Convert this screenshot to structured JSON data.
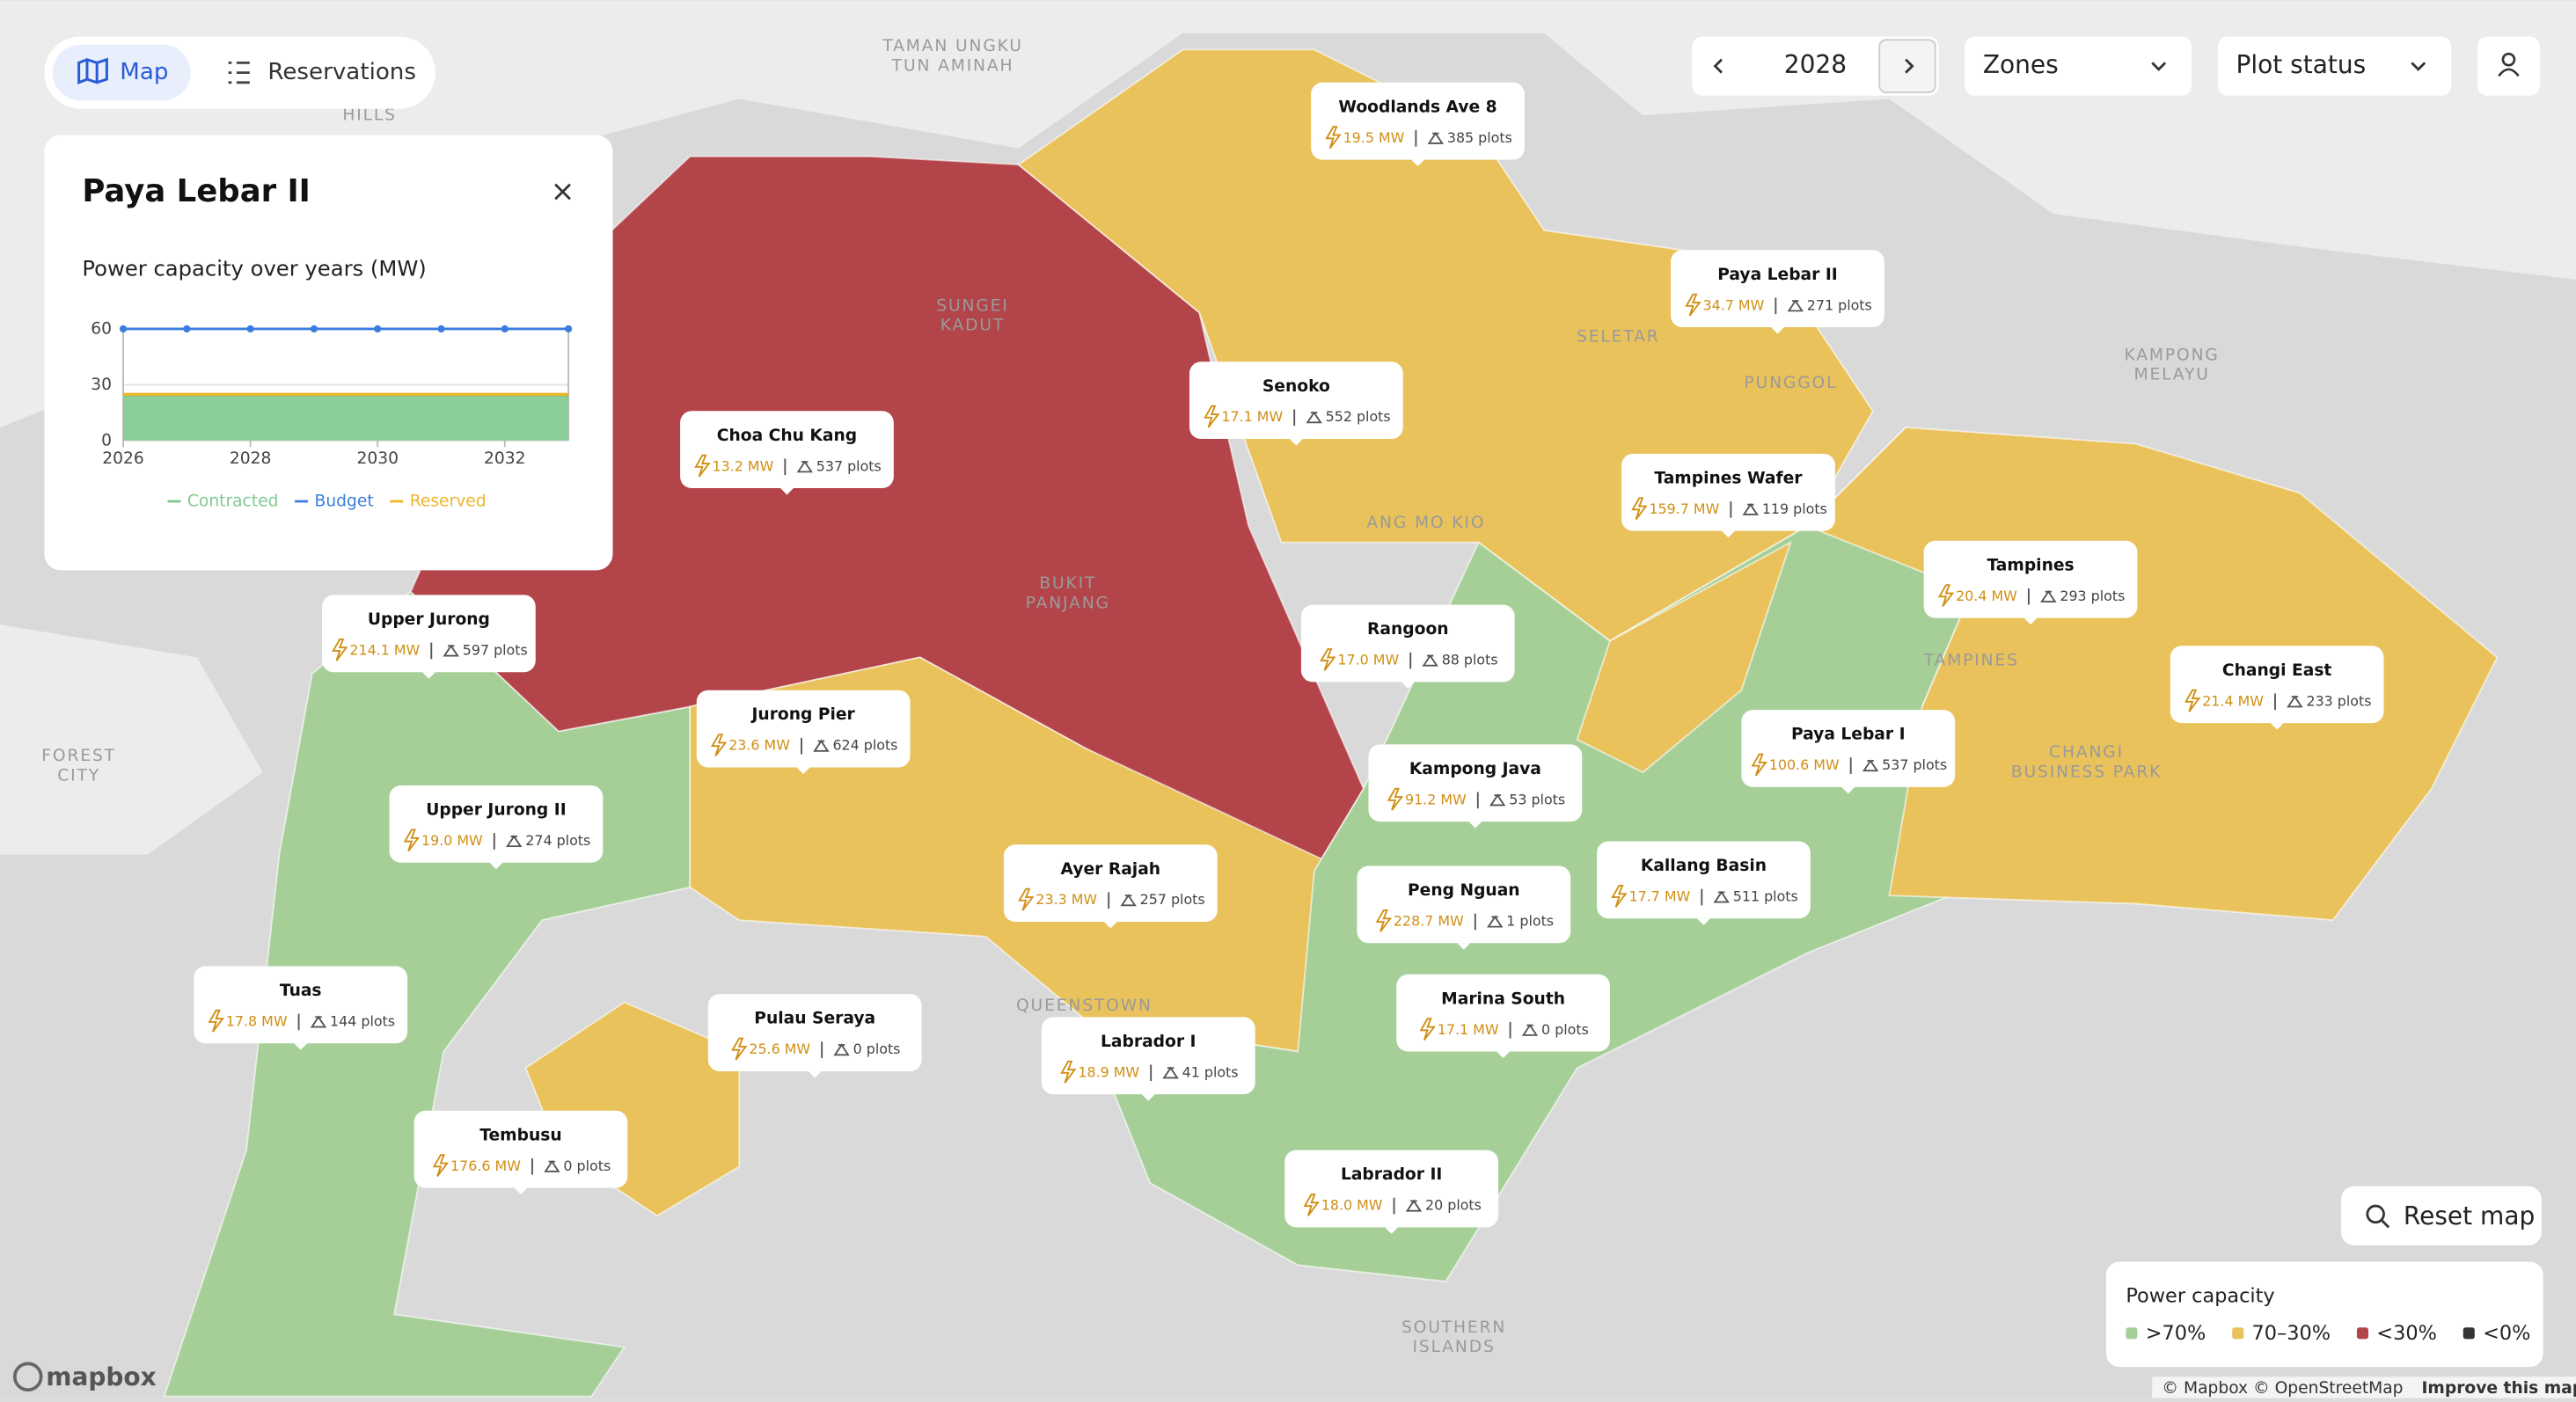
{
  "nav": {
    "tabs": [
      "Map",
      "Reservations"
    ]
  },
  "controls": {
    "year": "2028",
    "zones": "Zones",
    "plot_status": "Plot status",
    "reset": "Reset map"
  },
  "panel": {
    "title": "Paya Lebar II"
  },
  "chart_data": {
    "type": "area",
    "title": "Power capacity over years (MW)",
    "x": [
      2026,
      2027,
      2028,
      2029,
      2030,
      2031,
      2032,
      2033
    ],
    "xlim": [
      2026,
      2033
    ],
    "xticks": [
      2026,
      2028,
      2030,
      2032
    ],
    "ylim": [
      0,
      60
    ],
    "yticks": [
      0,
      30,
      60
    ],
    "stacked": true,
    "series": [
      {
        "name": "Contracted",
        "color": "#7fc98f",
        "kind": "area",
        "values": [
          24,
          24,
          24,
          24,
          24,
          24,
          24,
          24
        ]
      },
      {
        "name": "Budget",
        "color": "#3b7ddd",
        "kind": "line",
        "values": [
          60,
          60,
          60,
          60,
          60,
          60,
          60,
          60
        ]
      },
      {
        "name": "Reserved",
        "color": "#f0b429",
        "kind": "area",
        "values": [
          1,
          1,
          1,
          1,
          1,
          1,
          1,
          1
        ]
      }
    ]
  },
  "zones": [
    {
      "name": "Woodlands Ave 8",
      "power": "19.5 MW",
      "plots": "385 plots"
    },
    {
      "name": "Paya Lebar II",
      "power": "34.7 MW",
      "plots": "271 plots"
    },
    {
      "name": "Senoko",
      "power": "17.1 MW",
      "plots": "552 plots"
    },
    {
      "name": "Choa Chu Kang",
      "power": "13.2 MW",
      "plots": "537 plots"
    },
    {
      "name": "Tampines Wafer",
      "power": "159.7 MW",
      "plots": "119 plots"
    },
    {
      "name": "Tampines",
      "power": "20.4 MW",
      "plots": "293 plots"
    },
    {
      "name": "Upper Jurong",
      "power": "214.1 MW",
      "plots": "597 plots"
    },
    {
      "name": "Rangoon",
      "power": "17.0 MW",
      "plots": "88 plots"
    },
    {
      "name": "Changi East",
      "power": "21.4 MW",
      "plots": "233 plots"
    },
    {
      "name": "Jurong Pier",
      "power": "23.6 MW",
      "plots": "624 plots"
    },
    {
      "name": "Paya Lebar I",
      "power": "100.6 MW",
      "plots": "537 plots"
    },
    {
      "name": "Kampong Java",
      "power": "91.2 MW",
      "plots": "53 plots"
    },
    {
      "name": "Upper Jurong II",
      "power": "19.0 MW",
      "plots": "274 plots"
    },
    {
      "name": "Ayer Rajah",
      "power": "23.3 MW",
      "plots": "257 plots"
    },
    {
      "name": "Kallang Basin",
      "power": "17.7 MW",
      "plots": "511 plots"
    },
    {
      "name": "Peng Nguan",
      "power": "228.7 MW",
      "plots": "1 plots"
    },
    {
      "name": "Tuas",
      "power": "17.8 MW",
      "plots": "144 plots"
    },
    {
      "name": "Marina South",
      "power": "17.1 MW",
      "plots": "0 plots"
    },
    {
      "name": "Pulau Seraya",
      "power": "25.6 MW",
      "plots": "0 plots"
    },
    {
      "name": "Labrador I",
      "power": "18.9 MW",
      "plots": "41 plots"
    },
    {
      "name": "Tembusu",
      "power": "176.6 MW",
      "plots": "0 plots"
    },
    {
      "name": "Labrador II",
      "power": "18.0 MW",
      "plots": "20 plots"
    }
  ],
  "map_labels": [
    "TAMAN UNGKU",
    "TUN AMINAH",
    "HILLS",
    "FOREST",
    "CITY",
    "KAMPONG",
    "MELAYU",
    "SUNGEI",
    "KADUT",
    "BUKIT",
    "PANJANG",
    "ANG MO KIO",
    "SELETAR",
    "PUNGGOL",
    "TAMPINES",
    "CHANGI",
    "BUSINESS PARK",
    "QUEENSTOWN",
    "SOUTHERN",
    "ISLANDS"
  ],
  "legend": {
    "title": "Power capacity",
    "items": [
      {
        "label": ">70%",
        "color": "#a6cf98"
      },
      {
        "label": "70–30%",
        "color": "#e9c25c"
      },
      {
        "label": "<30%",
        "color": "#b3444a"
      },
      {
        "label": "<0%",
        "color": "#333333"
      }
    ]
  },
  "attribution": {
    "logo": "mapbox",
    "credits": "© Mapbox © OpenStreetMap",
    "improve": "Improve this map"
  }
}
